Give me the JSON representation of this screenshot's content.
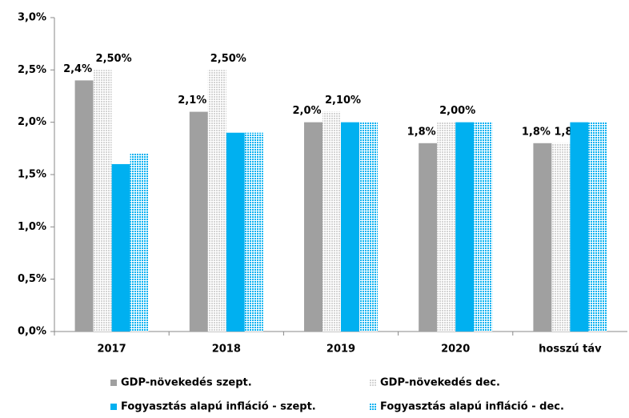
{
  "chart_data": {
    "type": "bar",
    "categories": [
      "2017",
      "2018",
      "2019",
      "2020",
      "hosszú táv"
    ],
    "series": [
      {
        "name": "GDP-növekedés szept.",
        "color": "#a0a0a0",
        "pattern": false,
        "values": [
          2.4,
          2.1,
          2.0,
          1.8,
          1.8
        ],
        "value_labels": [
          "2,4%",
          "2,1%",
          "2,0%",
          "1,8%",
          "1,8%"
        ]
      },
      {
        "name": "GDP-növekedés dec.",
        "color": "#d4d4d4",
        "pattern": true,
        "values": [
          2.5,
          2.5,
          2.1,
          2.0,
          1.8
        ],
        "value_labels": [
          "2,50%",
          "2,50%",
          "2,10%",
          "2,00%",
          "1,80%"
        ]
      },
      {
        "name": "Fogyasztás alapú infláció - szept.",
        "color": "#00b0f0",
        "pattern": false,
        "values": [
          1.6,
          1.9,
          2.0,
          2.0,
          2.0
        ]
      },
      {
        "name": "Fogyasztás alapú infláció - dec.",
        "color": "#00b0f0",
        "pattern": true,
        "values": [
          1.7,
          1.9,
          2.0,
          2.0,
          2.0
        ]
      }
    ],
    "ylim": [
      0,
      3
    ],
    "yticks": [
      {
        "value": 0,
        "label": "0,0%"
      },
      {
        "value": 0.5,
        "label": "0,5%"
      },
      {
        "value": 1,
        "label": "1,0%"
      },
      {
        "value": 1.5,
        "label": "1,5%"
      },
      {
        "value": 2,
        "label": "2,0%"
      },
      {
        "value": 2.5,
        "label": "2,5%"
      },
      {
        "value": 3,
        "label": "3,0%"
      }
    ],
    "grid": false
  }
}
